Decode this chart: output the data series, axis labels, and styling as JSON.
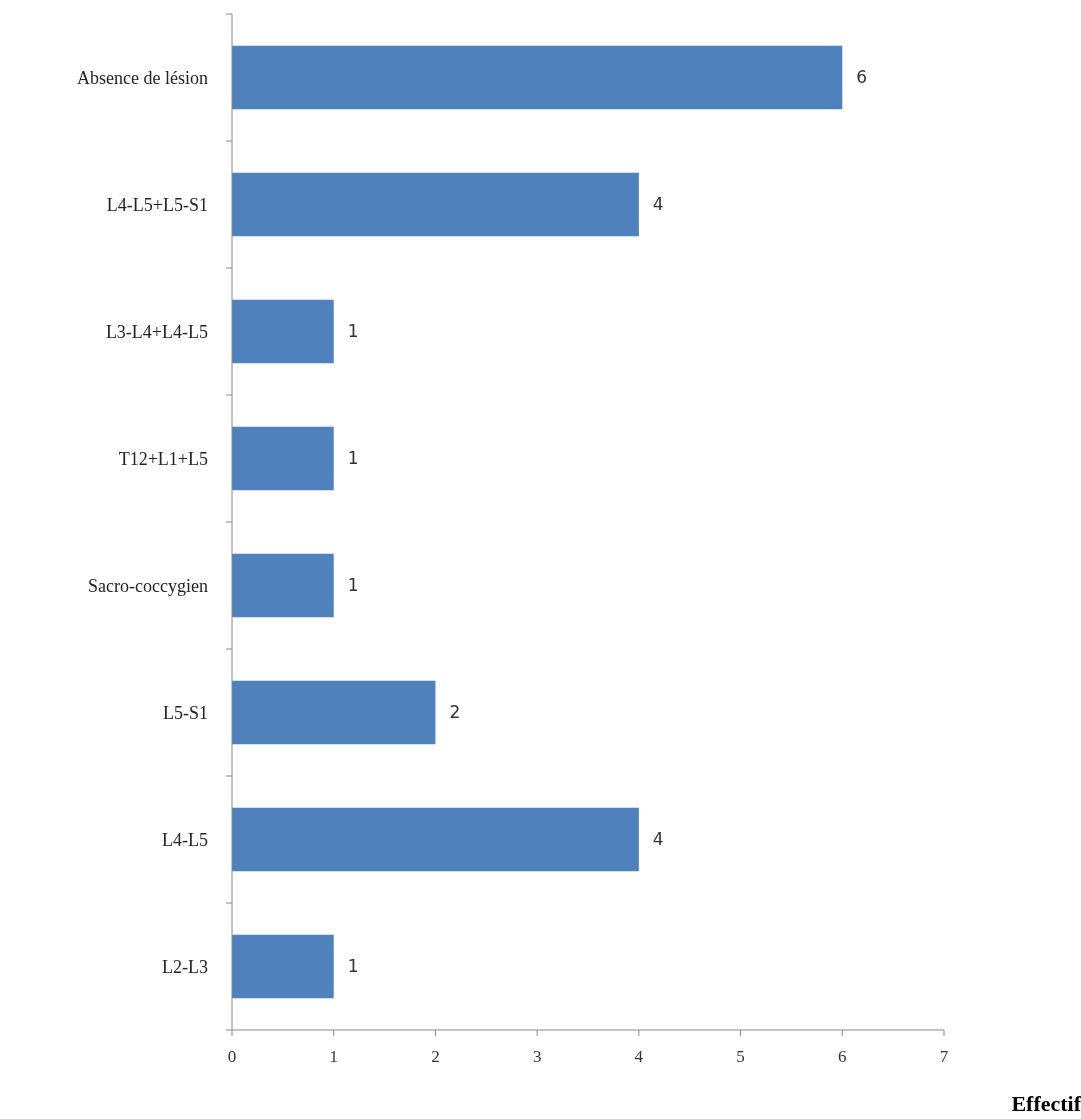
{
  "chart_data": {
    "type": "bar",
    "orientation": "horizontal",
    "xlabel": "Effectif",
    "categories": [
      "Absence de lésion",
      "L4-L5+L5-S1",
      "L3-L4+L4-L5",
      "T12+L1+L5",
      "Sacro-coccygien",
      "L5-S1",
      "L4-L5",
      "L2-L3"
    ],
    "values": [
      6,
      4,
      1,
      1,
      1,
      2,
      4,
      1
    ],
    "color": "#4f81bd",
    "xlim": [
      0,
      7
    ],
    "xticks": [
      0,
      1,
      2,
      3,
      4,
      5,
      6,
      7
    ],
    "data_labels": true
  }
}
